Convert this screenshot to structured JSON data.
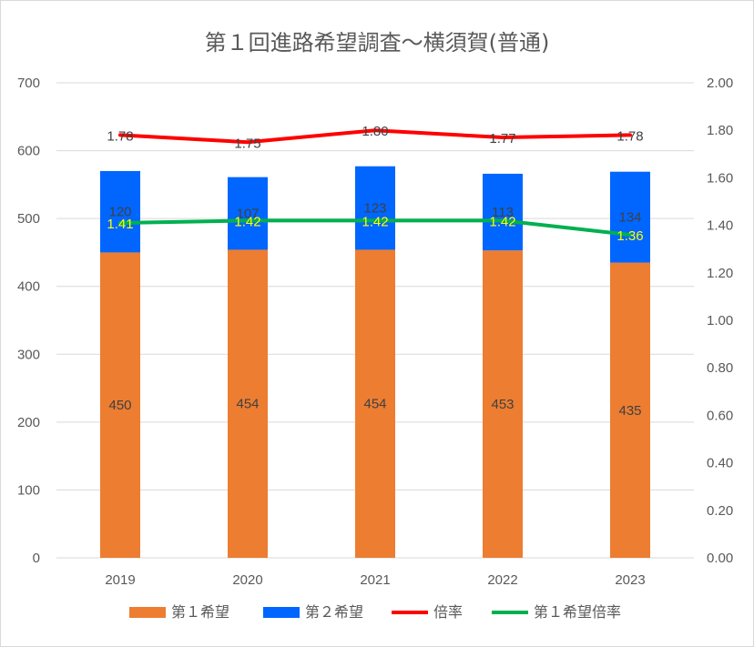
{
  "chart_data": {
    "type": "bar",
    "title": "第１回進路希望調査～横須賀(普通)",
    "categories": [
      "2019",
      "2020",
      "2021",
      "2022",
      "2023"
    ],
    "series": [
      {
        "name": "第１希望",
        "type": "bar",
        "axis": "left",
        "color": "#ED7D31",
        "values": [
          450,
          454,
          454,
          453,
          435
        ]
      },
      {
        "name": "第２希望",
        "type": "bar",
        "axis": "left",
        "color": "#0066FF",
        "values": [
          120,
          107,
          123,
          113,
          134
        ]
      },
      {
        "name": "倍率",
        "type": "line",
        "axis": "right",
        "color": "#FF0000",
        "values": [
          1.78,
          1.75,
          1.8,
          1.77,
          1.78
        ]
      },
      {
        "name": "第１希望倍率",
        "type": "line",
        "axis": "right",
        "color": "#00B050",
        "values": [
          1.41,
          1.42,
          1.42,
          1.42,
          1.36
        ]
      }
    ],
    "stacked": true,
    "y_left": {
      "min": 0,
      "max": 700,
      "ticks": [
        "0",
        "100",
        "200",
        "300",
        "400",
        "500",
        "600",
        "700"
      ]
    },
    "y_right": {
      "min": 0,
      "max": 2.0,
      "ticks": [
        "0.00",
        "0.20",
        "0.40",
        "0.60",
        "0.80",
        "1.00",
        "1.20",
        "1.40",
        "1.60",
        "1.80",
        "2.00"
      ]
    },
    "grid": true,
    "legend": "bottom",
    "label_colors": {
      "bar": "#404040",
      "ratio": "#404040",
      "first_ratio": "#FFFF00"
    }
  }
}
